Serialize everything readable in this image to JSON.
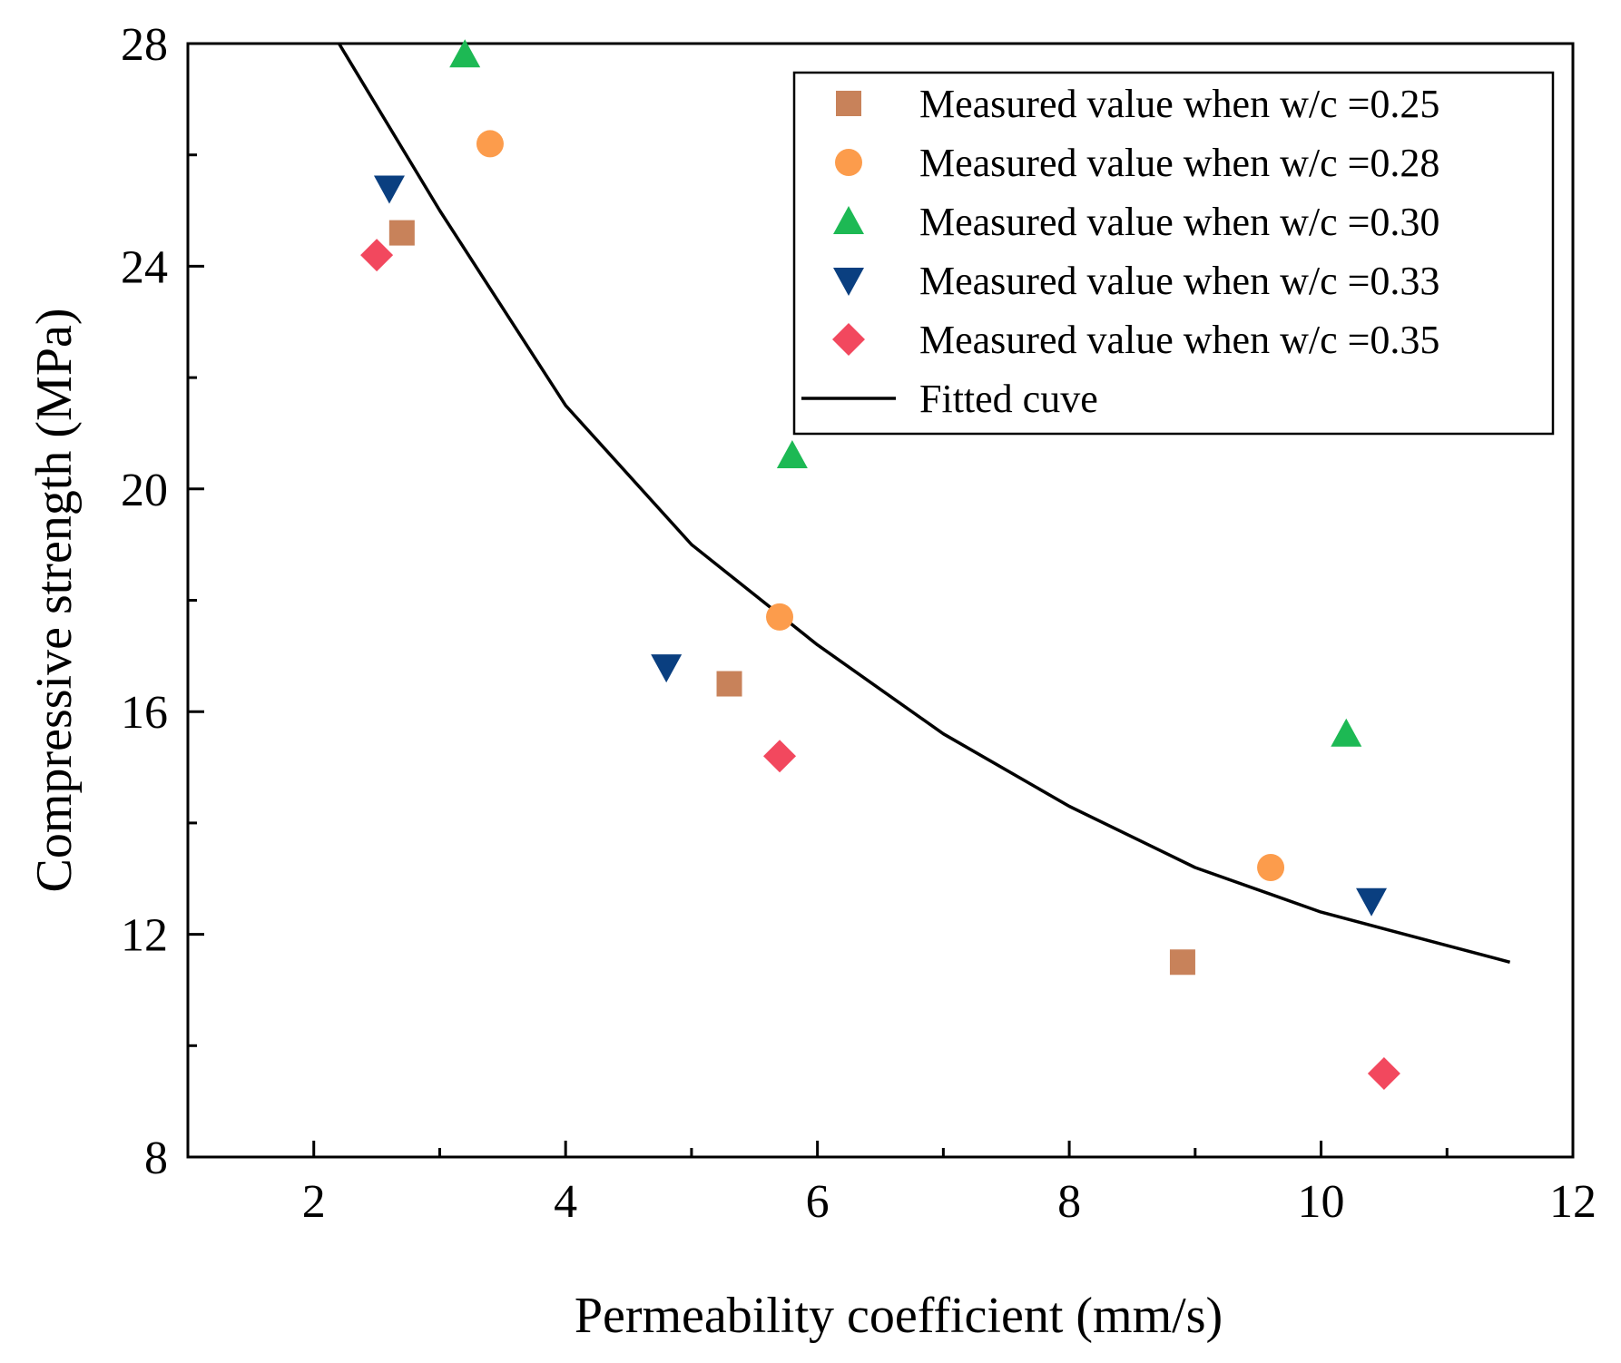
{
  "chart_data": {
    "type": "scatter",
    "title": "",
    "xlabel": "Permeability coefficient (mm/s)",
    "ylabel": "Compressive strength (MPa)",
    "xlim": [
      1,
      12
    ],
    "ylim": [
      8,
      28
    ],
    "xticks": [
      2,
      4,
      6,
      8,
      10,
      12
    ],
    "yticks": [
      8,
      12,
      16,
      20,
      24,
      28
    ],
    "xminor_step": 1,
    "yminor_step": 2,
    "grid": false,
    "legend_position": "top-right",
    "series": [
      {
        "name": "Measured value when w/c =0.25",
        "marker": "square",
        "color": "#c8825a",
        "points": [
          [
            2.7,
            24.6
          ],
          [
            5.3,
            16.5
          ],
          [
            8.9,
            11.5
          ]
        ]
      },
      {
        "name": "Measured value when w/c =0.28",
        "marker": "circle",
        "color": "#fc9c4c",
        "points": [
          [
            3.4,
            26.2
          ],
          [
            5.7,
            17.7
          ],
          [
            9.6,
            13.2
          ]
        ]
      },
      {
        "name": "Measured value when w/c =0.30",
        "marker": "triangle-up",
        "color": "#1db954",
        "points": [
          [
            3.2,
            27.8
          ],
          [
            5.8,
            20.6
          ],
          [
            10.2,
            15.6
          ]
        ]
      },
      {
        "name": "Measured value when w/c =0.33",
        "marker": "triangle-down",
        "color": "#0a3f80",
        "points": [
          [
            2.6,
            25.4
          ],
          [
            4.8,
            16.8
          ],
          [
            10.4,
            12.6
          ]
        ]
      },
      {
        "name": "Measured value when w/c =0.35",
        "marker": "diamond",
        "color": "#f2485e",
        "points": [
          [
            2.5,
            24.2
          ],
          [
            5.7,
            15.2
          ],
          [
            10.5,
            9.5
          ]
        ]
      }
    ],
    "fitted_curve": {
      "name": "Fitted cuve",
      "color": "#000000",
      "points": [
        [
          2.2,
          28.0
        ],
        [
          3.0,
          25.0
        ],
        [
          4.0,
          21.5
        ],
        [
          5.0,
          19.0
        ],
        [
          6.0,
          17.2
        ],
        [
          7.0,
          15.6
        ],
        [
          8.0,
          14.3
        ],
        [
          9.0,
          13.2
        ],
        [
          10.0,
          12.4
        ],
        [
          11.0,
          11.8
        ],
        [
          11.5,
          11.5
        ]
      ]
    }
  }
}
